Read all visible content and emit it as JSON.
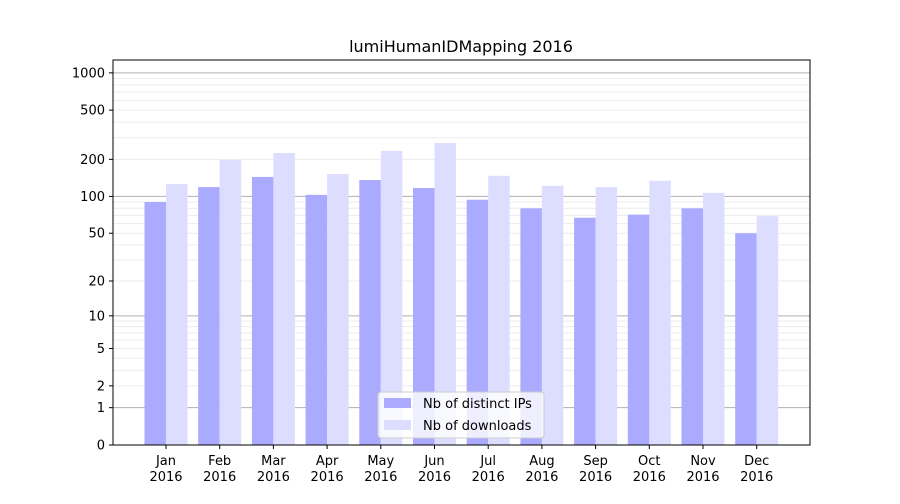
{
  "chart_data": {
    "type": "bar",
    "title": "lumiHumanIDMapping 2016",
    "xlabel": "",
    "ylabel": "",
    "yscale": "log10(y+1)",
    "ylim": [
      0,
      1270
    ],
    "yticks": [
      0,
      1,
      2,
      5,
      10,
      20,
      50,
      100,
      200,
      500,
      1000
    ],
    "categories": [
      "Jan\n2016",
      "Feb\n2016",
      "Mar\n2016",
      "Apr\n2016",
      "May\n2016",
      "Jun\n2016",
      "Jul\n2016",
      "Aug\n2016",
      "Sep\n2016",
      "Oct\n2016",
      "Nov\n2016",
      "Dec\n2016"
    ],
    "series": [
      {
        "name": "Nb of distinct IPs",
        "color": "#aaaaff",
        "values": [
          90,
          119,
          144,
          103,
          136,
          117,
          94,
          80,
          67,
          71,
          80,
          50
        ]
      },
      {
        "name": "Nb of downloads",
        "color": "#ddddff",
        "values": [
          126,
          198,
          225,
          152,
          234,
          271,
          147,
          122,
          119,
          134,
          107,
          69
        ]
      }
    ],
    "grid": true,
    "legend": "bottom-center"
  }
}
